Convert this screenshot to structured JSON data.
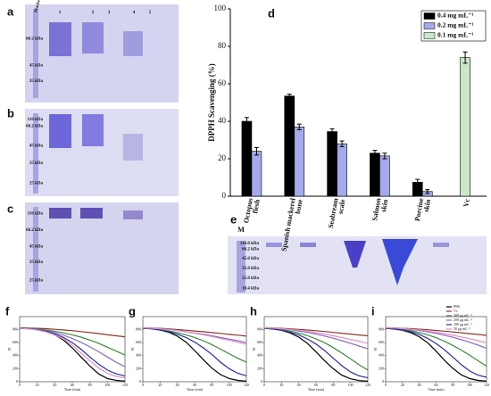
{
  "gels": [
    {
      "label": "a",
      "lanes": [
        "Marker",
        "1",
        "2",
        "3",
        "4",
        "5"
      ],
      "markers": [
        "66.2 kDa",
        "45 kDa",
        "35 kDa"
      ]
    },
    {
      "label": "b",
      "markers": [
        "116 kDa",
        "66.2 kDa",
        "45 kDa",
        "35 kDa",
        "25 kDa"
      ]
    },
    {
      "label": "c",
      "markers": [
        "116 kDa",
        "66.2 kDa",
        "45 kDa",
        "35 kDa",
        "25 kDa"
      ]
    },
    {
      "label": "e",
      "lanes": [
        "M"
      ],
      "markers": [
        "116.0 kDa",
        "66.2 kDa",
        "45.0 kDa",
        "35.0 kDa",
        "25.0 kDa",
        "18.4 kDa"
      ]
    }
  ],
  "chart_data": [
    {
      "type": "bar",
      "label": "d",
      "ylabel": "DPPH Scavenging (%)",
      "categories": [
        "Octopus flesh",
        "Spanish mackerel bone",
        "Seabream scale",
        "Salmon skin",
        "Porcine skin",
        "Vc"
      ],
      "series": [
        {
          "name": "0.4 mg mL⁻¹",
          "color": "#000000",
          "values": [
            40,
            53.5,
            34.5,
            23,
            7.5,
            null
          ],
          "errors": [
            2,
            1,
            1.5,
            1.5,
            1.5,
            null
          ]
        },
        {
          "name": "0.2 mg mL⁻¹",
          "color": "#a4aaec",
          "values": [
            24,
            37,
            28,
            21.5,
            2.5,
            null
          ],
          "errors": [
            2,
            1.5,
            1.5,
            1.5,
            1,
            null
          ]
        },
        {
          "name": "0.1 mg mL⁻¹",
          "color": "#c8e8c8",
          "values": [
            null,
            null,
            null,
            null,
            null,
            74
          ],
          "errors": [
            null,
            null,
            null,
            null,
            null,
            3
          ]
        }
      ],
      "ylim": [
        0,
        100
      ],
      "yticks": [
        0,
        20,
        40,
        60,
        80,
        100
      ],
      "legend": "upper right"
    },
    {
      "type": "line",
      "label": "f",
      "xlabel": "Time (min)",
      "ylabel": "FI",
      "x": [
        0,
        10,
        20,
        30,
        40,
        50,
        60,
        70,
        80,
        90,
        100,
        110,
        120
      ],
      "xlim": [
        0,
        120
      ],
      "xticks": [
        0,
        20,
        40,
        60,
        80,
        100,
        120
      ],
      "ylim": [
        0,
        1000
      ],
      "yticks": [
        0,
        200,
        400,
        600,
        800
      ],
      "series": [
        {
          "color": "#000000",
          "values": [
            820,
            815,
            800,
            770,
            720,
            640,
            520,
            380,
            240,
            120,
            50,
            20,
            10
          ]
        },
        {
          "color": "#8b3a2a",
          "values": [
            830,
            825,
            820,
            815,
            805,
            795,
            785,
            770,
            755,
            740,
            720,
            705,
            690
          ]
        },
        {
          "color": "#3a8a3a",
          "values": [
            825,
            820,
            810,
            795,
            775,
            750,
            720,
            685,
            640,
            590,
            530,
            470,
            410
          ]
        },
        {
          "color": "#8a6ac8",
          "values": [
            825,
            818,
            805,
            785,
            755,
            715,
            665,
            605,
            535,
            460,
            380,
            300,
            230
          ]
        },
        {
          "color": "#2a2aa0",
          "values": [
            822,
            815,
            800,
            775,
            735,
            680,
            600,
            500,
            380,
            270,
            180,
            120,
            90
          ]
        },
        {
          "color": "#e090c0",
          "values": [
            822,
            812,
            795,
            765,
            720,
            655,
            560,
            440,
            320,
            210,
            130,
            80,
            60
          ]
        }
      ],
      "legend": false
    },
    {
      "type": "line",
      "label": "g",
      "xlabel": "Time (min)",
      "ylabel": "FI",
      "x": [
        0,
        10,
        20,
        30,
        40,
        50,
        60,
        70,
        80,
        90,
        100,
        110,
        120
      ],
      "xlim": [
        0,
        120
      ],
      "xticks": [
        0,
        20,
        40,
        60,
        80,
        100,
        120
      ],
      "ylim": [
        0,
        1000
      ],
      "yticks": [
        0,
        200,
        400,
        600,
        800
      ],
      "series": [
        {
          "color": "#000000",
          "values": [
            820,
            812,
            795,
            760,
            700,
            610,
            480,
            340,
            210,
            110,
            50,
            20,
            10
          ]
        },
        {
          "color": "#8b3a2a",
          "values": [
            830,
            825,
            820,
            812,
            802,
            792,
            780,
            768,
            755,
            742,
            728,
            715,
            700
          ]
        },
        {
          "color": "#3a8a3a",
          "values": [
            825,
            815,
            800,
            780,
            755,
            720,
            680,
            630,
            570,
            500,
            430,
            360,
            300
          ]
        },
        {
          "color": "#8a6ac8",
          "values": [
            830,
            825,
            815,
            805,
            790,
            770,
            750,
            730,
            705,
            680,
            655,
            630,
            600
          ]
        },
        {
          "color": "#2a2aa0",
          "values": [
            825,
            815,
            795,
            770,
            730,
            680,
            610,
            520,
            420,
            300,
            200,
            130,
            90
          ]
        },
        {
          "color": "#e090c0",
          "values": [
            828,
            822,
            812,
            800,
            785,
            765,
            745,
            720,
            695,
            665,
            635,
            605,
            575
          ]
        }
      ],
      "legend": false
    },
    {
      "type": "line",
      "label": "h",
      "xlabel": "Time (min)",
      "ylabel": "FI",
      "x": [
        0,
        10,
        20,
        30,
        40,
        50,
        60,
        70,
        80,
        90,
        100,
        110,
        120
      ],
      "xlim": [
        0,
        120
      ],
      "xticks": [
        0,
        20,
        40,
        60,
        80,
        100,
        120
      ],
      "ylim": [
        0,
        1000
      ],
      "yticks": [
        0,
        200,
        400,
        600,
        800
      ],
      "series": [
        {
          "color": "#000000",
          "values": [
            820,
            810,
            790,
            750,
            685,
            590,
            460,
            320,
            200,
            100,
            45,
            18,
            8
          ]
        },
        {
          "color": "#8b3a2a",
          "values": [
            830,
            826,
            820,
            813,
            804,
            794,
            783,
            771,
            758,
            745,
            732,
            718,
            705
          ]
        },
        {
          "color": "#3a8a3a",
          "values": [
            825,
            815,
            800,
            778,
            748,
            708,
            658,
            598,
            525,
            440,
            350,
            260,
            180
          ]
        },
        {
          "color": "#8a6ac8",
          "values": [
            828,
            822,
            812,
            798,
            780,
            758,
            732,
            702,
            668,
            630,
            590,
            548,
            505
          ]
        },
        {
          "color": "#2a2aa0",
          "values": [
            825,
            812,
            792,
            762,
            718,
            658,
            578,
            478,
            360,
            245,
            150,
            90,
            60
          ]
        },
        {
          "color": "#e090c0",
          "values": [
            828,
            823,
            815,
            804,
            790,
            773,
            753,
            731,
            706,
            679,
            650,
            620,
            590
          ]
        }
      ],
      "legend": false
    },
    {
      "type": "line",
      "label": "i",
      "xlabel": "Time (min)",
      "ylabel": "FI",
      "x": [
        0,
        10,
        20,
        30,
        40,
        50,
        60,
        70,
        80,
        90,
        100,
        110,
        120
      ],
      "xlim": [
        0,
        120
      ],
      "xticks": [
        0,
        20,
        40,
        60,
        80,
        100,
        120
      ],
      "ylim": [
        0,
        1000
      ],
      "yticks": [
        0,
        200,
        400,
        600,
        800
      ],
      "series": [
        {
          "name": "PBS",
          "color": "#000000",
          "values": [
            820,
            810,
            790,
            752,
            690,
            598,
            470,
            330,
            205,
            105,
            48,
            20,
            9
          ]
        },
        {
          "name": "Vc",
          "color": "#8b3a2a",
          "values": [
            830,
            826,
            821,
            815,
            807,
            798,
            788,
            777,
            765,
            752,
            739,
            726,
            712
          ]
        },
        {
          "name": "400 μg mL⁻¹",
          "color": "#3a8a3a",
          "values": [
            825,
            816,
            802,
            782,
            755,
            720,
            676,
            622,
            558,
            485,
            405,
            322,
            240
          ]
        },
        {
          "name": "200 μg mL⁻¹",
          "color": "#8a6ac8",
          "values": [
            828,
            823,
            814,
            802,
            786,
            766,
            742,
            714,
            682,
            646,
            606,
            562,
            515
          ]
        },
        {
          "name": "100 μg mL⁻¹",
          "color": "#2a2aa0",
          "values": [
            825,
            814,
            795,
            766,
            724,
            666,
            588,
            490,
            378,
            262,
            165,
            100,
            68
          ]
        },
        {
          "name": "50 μg mL⁻¹",
          "color": "#e090c0",
          "values": [
            828,
            824,
            817,
            807,
            794,
            778,
            759,
            738,
            714,
            688,
            660,
            630,
            598
          ]
        }
      ],
      "legend": "upper right"
    }
  ]
}
